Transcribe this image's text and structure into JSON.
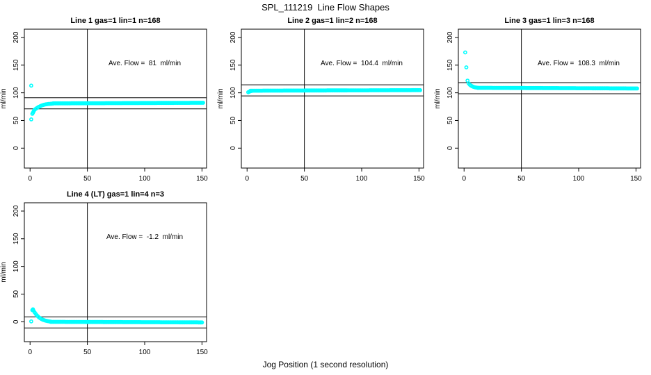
{
  "figure": {
    "title": "SPL_111219  Line Flow Shapes",
    "x_axis_label": "Jog Position (1 second resolution)",
    "point_color": "#00ffff",
    "line_color": "#000000",
    "background_color": "#ffffff"
  },
  "chart_data": [
    {
      "type": "scatter",
      "title": "Line 1 gas=1 lin=1 n=168",
      "annotation": "Ave. Flow =  81  ml/min",
      "annotation_at": [
        100,
        150
      ],
      "ave_flow_ml_min": 81,
      "ylabel": "ml/min",
      "xlim": [
        -5,
        154
      ],
      "ylim": [
        -36,
        215
      ],
      "x_ticks": [
        0,
        50,
        100,
        150
      ],
      "y_ticks": [
        0,
        50,
        100,
        150,
        200
      ],
      "vline_x": 50,
      "hlines": [
        91,
        71
      ],
      "points": [
        [
          1,
          113
        ],
        [
          1,
          52
        ],
        [
          2,
          62
        ],
        [
          2.5,
          64
        ],
        [
          3,
          66
        ],
        [
          3.5,
          68
        ],
        [
          4,
          69.5
        ],
        [
          5,
          71
        ],
        [
          6,
          72.5
        ],
        [
          7,
          74
        ],
        [
          8,
          75
        ],
        [
          9,
          76
        ],
        [
          10,
          77
        ],
        [
          11,
          77.7
        ],
        [
          12,
          78.3
        ],
        [
          13,
          78.8
        ],
        [
          14,
          79.2
        ],
        [
          15,
          79.5
        ],
        [
          16,
          79.8
        ],
        [
          17,
          80
        ],
        [
          18,
          80.2
        ],
        [
          19,
          80.4
        ],
        [
          20,
          80.6
        ]
      ],
      "band": {
        "x_from": 20,
        "x_to": 151,
        "y_from": 80.9,
        "y_to": 82,
        "x_step": 1
      }
    },
    {
      "type": "scatter",
      "title": "Line 2 gas=1 lin=2 n=168",
      "annotation": "Ave. Flow =  104.4  ml/min",
      "annotation_at": [
        100,
        150
      ],
      "ave_flow_ml_min": 104.4,
      "ylabel": "ml/min",
      "xlim": [
        -5,
        154
      ],
      "ylim": [
        -36,
        215
      ],
      "x_ticks": [
        0,
        50,
        100,
        150
      ],
      "y_ticks": [
        0,
        50,
        100,
        150,
        200
      ],
      "vline_x": 50,
      "hlines": [
        114.4,
        94.4
      ],
      "points": [
        [
          1,
          101
        ],
        [
          2,
          102
        ],
        [
          2.5,
          102.5
        ],
        [
          3,
          103
        ],
        [
          4,
          103.3
        ]
      ],
      "band": {
        "x_from": 3,
        "x_to": 151,
        "y_from": 103.8,
        "y_to": 104.8,
        "x_step": 1
      }
    },
    {
      "type": "scatter",
      "title": "Line 3 gas=1 lin=3 n=168",
      "annotation": "Ave. Flow =  108.3  ml/min",
      "annotation_at": [
        100,
        150
      ],
      "ave_flow_ml_min": 108.3,
      "ylabel": "ml/min",
      "xlim": [
        -5,
        154
      ],
      "ylim": [
        -36,
        215
      ],
      "x_ticks": [
        0,
        50,
        100,
        150
      ],
      "y_ticks": [
        0,
        50,
        100,
        150,
        200
      ],
      "vline_x": 50,
      "hlines": [
        118.3,
        98.3
      ],
      "points": [
        [
          1,
          173
        ],
        [
          2,
          146
        ],
        [
          3,
          122
        ],
        [
          4,
          117
        ],
        [
          5,
          114.5
        ],
        [
          6,
          113
        ],
        [
          7,
          111.8
        ],
        [
          8,
          110.8
        ],
        [
          9,
          110.2
        ],
        [
          10,
          109.7
        ],
        [
          11,
          109.4
        ],
        [
          12,
          109.1
        ]
      ],
      "band": {
        "x_from": 12,
        "x_to": 151,
        "y_from": 109,
        "y_to": 107.8,
        "x_step": 1
      }
    },
    {
      "type": "scatter",
      "title": "Line 4 (LT) gas=1 lin=4 n=3",
      "annotation": "Ave. Flow =  -1.2  ml/min",
      "annotation_at": [
        100,
        150
      ],
      "ave_flow_ml_min": -1.2,
      "ylabel": "ml/min",
      "xlim": [
        -5,
        154
      ],
      "ylim": [
        -36,
        215
      ],
      "x_ticks": [
        0,
        50,
        100,
        150
      ],
      "y_ticks": [
        0,
        50,
        100,
        150,
        200
      ],
      "vline_x": 50,
      "hlines": [
        8.8,
        -11.2
      ],
      "points": [
        [
          1,
          0.7
        ],
        [
          2,
          21
        ],
        [
          2.5,
          22.5
        ],
        [
          3,
          20
        ],
        [
          4,
          17
        ],
        [
          5,
          14
        ],
        [
          6,
          11.5
        ],
        [
          7,
          9.3
        ],
        [
          8,
          7.5
        ],
        [
          9,
          6
        ],
        [
          10,
          4.8
        ],
        [
          11,
          3.8
        ],
        [
          12,
          3
        ],
        [
          13,
          2.3
        ],
        [
          14,
          1.8
        ],
        [
          15,
          1.3
        ],
        [
          16,
          0.9
        ],
        [
          17,
          0.5
        ],
        [
          18,
          0.2
        ]
      ],
      "band": {
        "x_from": 18,
        "x_to": 150,
        "y_from": -0.2,
        "y_to": -1.2,
        "x_step": 1
      }
    }
  ]
}
